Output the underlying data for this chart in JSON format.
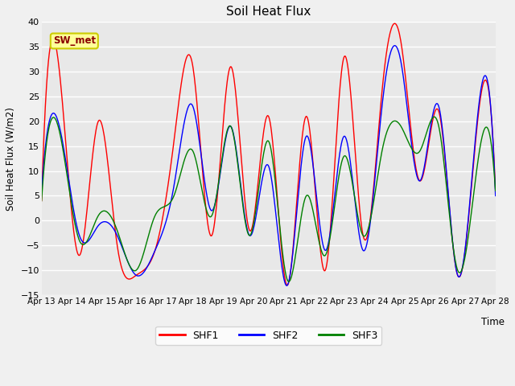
{
  "title": "Soil Heat Flux",
  "xlabel": "Time",
  "ylabel": "Soil Heat Flux (W/m2)",
  "ylim": [
    -15,
    40
  ],
  "yticks": [
    -15,
    -10,
    -5,
    0,
    5,
    10,
    15,
    20,
    25,
    30,
    35,
    40
  ],
  "fig_facecolor": "#f0f0f0",
  "ax_facecolor": "#e8e8e8",
  "grid_color": "#ffffff",
  "series": [
    "SHF1",
    "SHF2",
    "SHF3"
  ],
  "colors": [
    "red",
    "blue",
    "green"
  ],
  "annotation_text": "SW_met",
  "annotation_bg": "#ffff99",
  "annotation_border": "#cccc00",
  "annotation_text_color": "#8b0000",
  "n_days": 15,
  "start_day": 13,
  "figsize": [
    6.4,
    4.8
  ],
  "dpi": 100,
  "shf1_peaks": [
    4,
    28,
    -7,
    20,
    -5,
    -11,
    -6,
    16,
    31,
    -3,
    31,
    -2,
    21,
    -13,
    21,
    -10,
    33,
    -3,
    26,
    36,
    8,
    22,
    -11,
    18,
    6
  ],
  "shf2_peaks": [
    6,
    18,
    -3,
    -1,
    -3,
    -11,
    -6,
    7,
    23,
    2,
    19,
    -3,
    11,
    -13,
    17,
    -6,
    17,
    -6,
    23,
    32,
    8,
    23,
    -11,
    19,
    5
  ],
  "shf3_peaks": [
    4,
    17,
    -4,
    1,
    -2,
    -10,
    1,
    5,
    14,
    1,
    19,
    -3,
    16,
    -12,
    5,
    -7,
    13,
    -3,
    14,
    19,
    14,
    19,
    -10,
    10,
    6
  ]
}
